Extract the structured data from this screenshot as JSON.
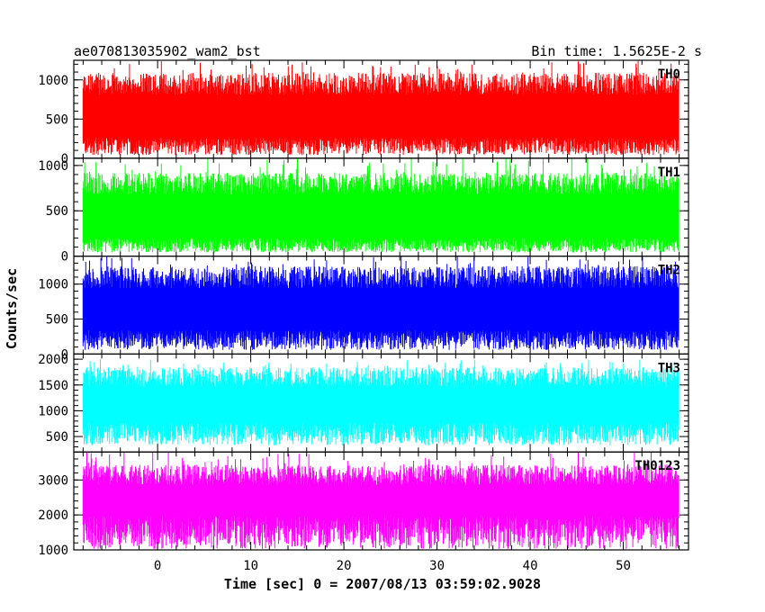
{
  "chart_data": {
    "type": "line",
    "title": "ae070813035902_wam2_bst",
    "bin_time_label": "Bin time: 1.5625E-2 s",
    "xlabel": "Time [sec] 0 = 2007/08/13 03:59:02.9028",
    "ylabel": "Counts/sec",
    "xlim": [
      -9,
      57
    ],
    "data_x_range": [
      -8,
      56
    ],
    "x_ticks": [
      "0",
      "10",
      "20",
      "30",
      "40",
      "50"
    ],
    "grid": false,
    "series": [
      {
        "name": "TH0",
        "color": "#ff0000",
        "ylim": [
          0,
          1250
        ],
        "y_ticks": [
          "0",
          "500",
          "1000"
        ],
        "typical_min": 150,
        "typical_max": 950,
        "peak_max": 1250,
        "floor_min": 40
      },
      {
        "name": "TH1",
        "color": "#00ff00",
        "ylim": [
          0,
          1080
        ],
        "y_ticks": [
          "0",
          "500",
          "1000"
        ],
        "typical_min": 120,
        "typical_max": 800,
        "peak_max": 1080,
        "floor_min": 40
      },
      {
        "name": "TH2",
        "color": "#0000ff",
        "ylim": [
          0,
          1400
        ],
        "y_ticks": [
          "0",
          "500",
          "1000"
        ],
        "typical_min": 200,
        "typical_max": 1100,
        "peak_max": 1400,
        "floor_min": 60
      },
      {
        "name": "TH3",
        "color": "#00ffff",
        "ylim": [
          200,
          2100
        ],
        "y_ticks": [
          "500",
          "1000",
          "1500",
          "2000"
        ],
        "typical_min": 550,
        "typical_max": 1650,
        "peak_max": 2000,
        "floor_min": 330
      },
      {
        "name": "TH0123",
        "color": "#ff00ff",
        "ylim": [
          1000,
          3800
        ],
        "y_ticks": [
          "1000",
          "2000",
          "3000"
        ],
        "typical_min": 1500,
        "typical_max": 3150,
        "peak_max": 3800,
        "floor_min": 1030
      }
    ]
  }
}
